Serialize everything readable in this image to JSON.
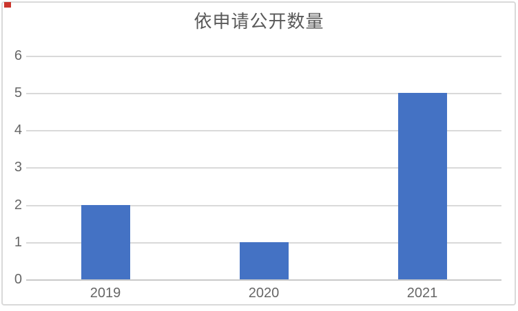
{
  "annotations": {
    "red_marker_color": "#CB352C"
  },
  "chart_data": {
    "type": "bar",
    "title": "依申请公开数量",
    "categories": [
      "2019",
      "2020",
      "2021"
    ],
    "values": [
      2,
      1,
      5
    ],
    "ylim": [
      0,
      6
    ],
    "yticks": [
      6,
      5,
      4,
      3,
      2,
      1,
      0
    ],
    "xlabel": "",
    "ylabel": "",
    "grid": true,
    "legend": "none",
    "bar_color": "#4472C4",
    "gridline_color": "#D9D9D9",
    "axis_line_color": "#C9C9C9",
    "title_color": "#595959",
    "tick_label_color": "#666666",
    "frame_border_color": "#D9D9D9"
  }
}
